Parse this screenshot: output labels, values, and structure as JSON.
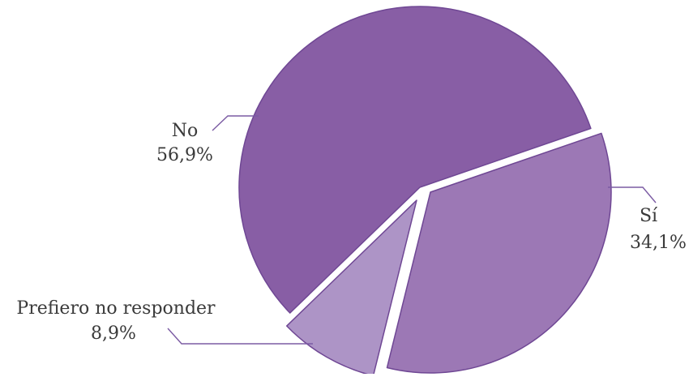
{
  "chart_data": {
    "type": "pie",
    "title": "",
    "categories": [
      "Sí",
      "Prefiero no responder",
      "No"
    ],
    "values": [
      34.1,
      8.9,
      56.9
    ],
    "labels": [
      "34,1%",
      "8,9%",
      "56,9%"
    ],
    "colors": [
      "#9c78b5",
      "#ad94c6",
      "#885ea5"
    ],
    "start_angle_deg": -19,
    "exploded": true,
    "legend": "none"
  },
  "colors": {
    "border": "#6f4794",
    "leader": "#7b5ba3",
    "separator": "#ffffff"
  }
}
